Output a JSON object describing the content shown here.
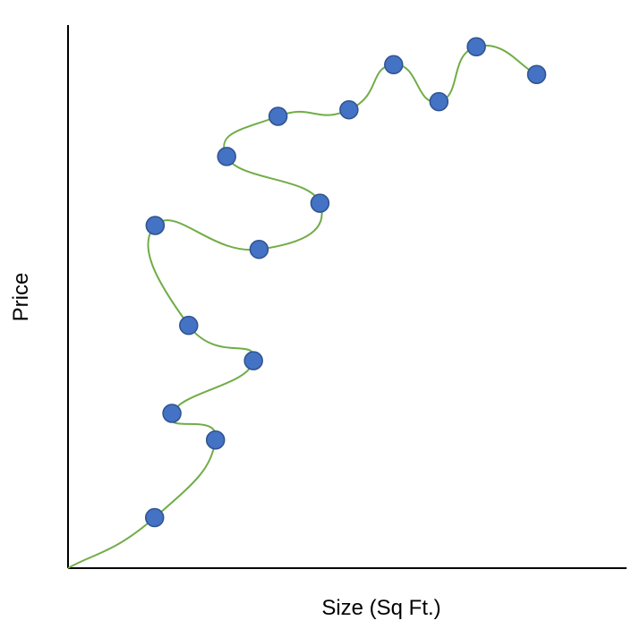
{
  "chart_data": {
    "type": "scatter",
    "title": "",
    "xlabel": "Size (Sq Ft.)",
    "ylabel": "Price",
    "xlim": [
      0,
      100
    ],
    "ylim": [
      0,
      100
    ],
    "grid": false,
    "ticks": false,
    "points": [
      {
        "x": 15.5,
        "y": 9.3
      },
      {
        "x": 26.4,
        "y": 23.6
      },
      {
        "x": 18.6,
        "y": 28.5
      },
      {
        "x": 33.2,
        "y": 38.2
      },
      {
        "x": 21.6,
        "y": 44.7
      },
      {
        "x": 15.6,
        "y": 63.1
      },
      {
        "x": 34.2,
        "y": 58.7
      },
      {
        "x": 45.1,
        "y": 67.2
      },
      {
        "x": 28.4,
        "y": 75.8
      },
      {
        "x": 37.6,
        "y": 83.2
      },
      {
        "x": 50.3,
        "y": 84.4
      },
      {
        "x": 58.3,
        "y": 92.7
      },
      {
        "x": 66.4,
        "y": 85.9
      },
      {
        "x": 73.1,
        "y": 96.0
      },
      {
        "x": 83.9,
        "y": 90.9
      }
    ],
    "curve": [
      {
        "x": 0.0,
        "y": 0.0
      },
      {
        "x": 15.5,
        "y": 9.3
      },
      {
        "x": 26.4,
        "y": 23.6
      },
      {
        "x": 18.6,
        "y": 28.5
      },
      {
        "x": 33.2,
        "y": 38.2
      },
      {
        "x": 21.6,
        "y": 44.7
      },
      {
        "x": 15.6,
        "y": 63.1
      },
      {
        "x": 34.2,
        "y": 58.7
      },
      {
        "x": 45.1,
        "y": 67.2
      },
      {
        "x": 28.4,
        "y": 75.8
      },
      {
        "x": 37.6,
        "y": 83.2
      },
      {
        "x": 50.3,
        "y": 84.4
      },
      {
        "x": 58.3,
        "y": 92.7
      },
      {
        "x": 66.4,
        "y": 85.9
      },
      {
        "x": 73.1,
        "y": 96.0
      },
      {
        "x": 83.9,
        "y": 90.9
      }
    ],
    "colors": {
      "point_fill": "#4472C4",
      "point_stroke": "#2F528F",
      "curve": "#70AD47",
      "axis": "#000000"
    }
  }
}
